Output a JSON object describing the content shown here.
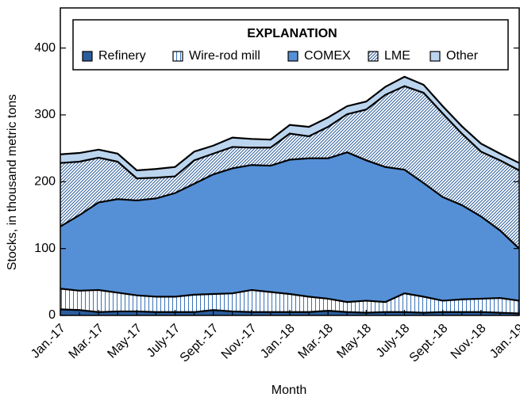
{
  "chart_data": {
    "type": "stacked-area",
    "ylabel": "Stocks, in thousand metric tons",
    "xlabel": "Month",
    "legend_title": "EXPLANATION",
    "categories": [
      "Jan.-17",
      null,
      "Mar.-17",
      null,
      "May-17",
      null,
      "July-17",
      null,
      "Sept.-17",
      null,
      "Nov.-17",
      null,
      "Jan.-18",
      null,
      "Mar.-18",
      null,
      "May-18",
      null,
      "July-18",
      null,
      "Sept.-18",
      null,
      "Nov.-18",
      null,
      "Jan.-19"
    ],
    "series": [
      {
        "name": "Refinery",
        "color": "#2b5d9c",
        "hatch": "none",
        "values": [
          9,
          8,
          5,
          6,
          6,
          5,
          5,
          5,
          8,
          6,
          5,
          5,
          5,
          5,
          7,
          5,
          4,
          5,
          5,
          4,
          5,
          5,
          5,
          4,
          3
        ]
      },
      {
        "name": "Wire-rod mill",
        "color": "#3b73b9",
        "hatch": "vertical",
        "values": [
          31,
          29,
          33,
          28,
          24,
          23,
          23,
          26,
          24,
          27,
          33,
          30,
          27,
          23,
          18,
          15,
          18,
          15,
          28,
          24,
          17,
          19,
          20,
          22,
          19
        ]
      },
      {
        "name": "COMEX",
        "color": "#5590d6",
        "hatch": "none",
        "values": [
          93,
          113,
          131,
          140,
          142,
          147,
          155,
          166,
          179,
          187,
          187,
          189,
          201,
          207,
          210,
          224,
          210,
          202,
          185,
          170,
          155,
          141,
          123,
          101,
          78
        ]
      },
      {
        "name": "LME",
        "color": "#2b5d9c",
        "hatch": "diagonal",
        "values": [
          95,
          80,
          67,
          56,
          33,
          31,
          25,
          35,
          31,
          32,
          26,
          27,
          39,
          33,
          47,
          57,
          76,
          108,
          125,
          135,
          125,
          107,
          97,
          105,
          117
        ]
      },
      {
        "name": "Other",
        "color": "#bcd5ef",
        "hatch": "none",
        "values": [
          13,
          13,
          12,
          12,
          12,
          13,
          14,
          13,
          12,
          14,
          13,
          12,
          13,
          14,
          14,
          12,
          12,
          12,
          14,
          12,
          11,
          11,
          12,
          10,
          11
        ]
      }
    ],
    "ylim": [
      0,
      460
    ],
    "yticks": [
      0,
      100,
      200,
      300,
      400
    ]
  }
}
